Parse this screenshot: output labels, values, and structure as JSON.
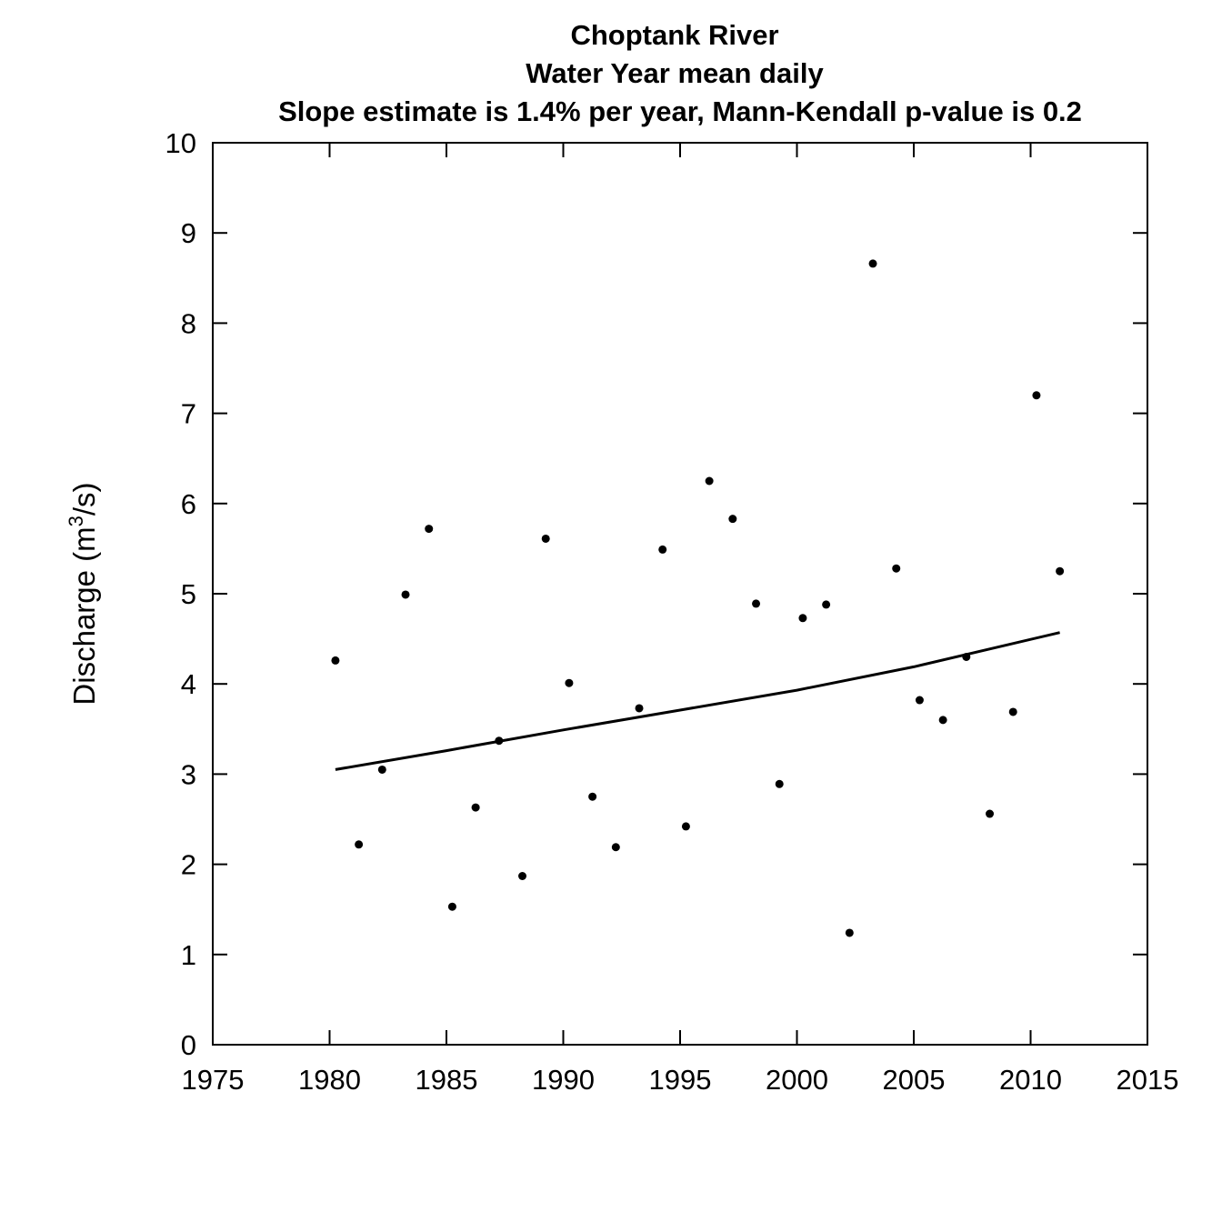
{
  "chart_data": {
    "type": "scatter",
    "title_lines": [
      "Choptank River",
      "Water Year  mean daily",
      "Slope estimate is 1.4% per year, Mann-Kendall p-value is 0.2"
    ],
    "xlabel": "",
    "ylabel_main": "Discharge (m",
    "ylabel_sup": "3",
    "ylabel_tail": "/s)",
    "xlim": [
      1975,
      2015
    ],
    "ylim": [
      0,
      10
    ],
    "x_ticks": [
      1975,
      1980,
      1985,
      1990,
      1995,
      2000,
      2005,
      2010,
      2015
    ],
    "y_ticks": [
      0,
      1,
      2,
      3,
      4,
      5,
      6,
      7,
      8,
      9,
      10
    ],
    "grid": false,
    "points": [
      {
        "x": 1980.25,
        "y": 4.26
      },
      {
        "x": 1981.25,
        "y": 2.22
      },
      {
        "x": 1982.25,
        "y": 3.05
      },
      {
        "x": 1983.25,
        "y": 4.99
      },
      {
        "x": 1984.25,
        "y": 5.72
      },
      {
        "x": 1985.25,
        "y": 1.53
      },
      {
        "x": 1986.25,
        "y": 2.63
      },
      {
        "x": 1987.25,
        "y": 3.37
      },
      {
        "x": 1988.25,
        "y": 1.87
      },
      {
        "x": 1989.25,
        "y": 5.61
      },
      {
        "x": 1990.25,
        "y": 4.01
      },
      {
        "x": 1991.25,
        "y": 2.75
      },
      {
        "x": 1992.25,
        "y": 2.19
      },
      {
        "x": 1993.25,
        "y": 3.73
      },
      {
        "x": 1994.25,
        "y": 5.49
      },
      {
        "x": 1995.25,
        "y": 2.42
      },
      {
        "x": 1996.25,
        "y": 6.25
      },
      {
        "x": 1997.25,
        "y": 5.83
      },
      {
        "x": 1998.25,
        "y": 4.89
      },
      {
        "x": 1999.25,
        "y": 2.89
      },
      {
        "x": 2000.25,
        "y": 4.73
      },
      {
        "x": 2001.25,
        "y": 4.88
      },
      {
        "x": 2002.25,
        "y": 1.24
      },
      {
        "x": 2003.25,
        "y": 8.66
      },
      {
        "x": 2004.25,
        "y": 5.28
      },
      {
        "x": 2005.25,
        "y": 3.82
      },
      {
        "x": 2006.25,
        "y": 3.6
      },
      {
        "x": 2007.25,
        "y": 4.3
      },
      {
        "x": 2008.25,
        "y": 2.56
      },
      {
        "x": 2009.25,
        "y": 3.69
      },
      {
        "x": 2010.25,
        "y": 7.2
      },
      {
        "x": 2011.25,
        "y": 5.25
      }
    ],
    "trend": {
      "x": [
        1980.25,
        1985,
        1990,
        1995,
        2000,
        2005,
        2011.25
      ],
      "y": [
        3.05,
        3.26,
        3.49,
        3.71,
        3.93,
        4.19,
        4.57
      ]
    }
  }
}
